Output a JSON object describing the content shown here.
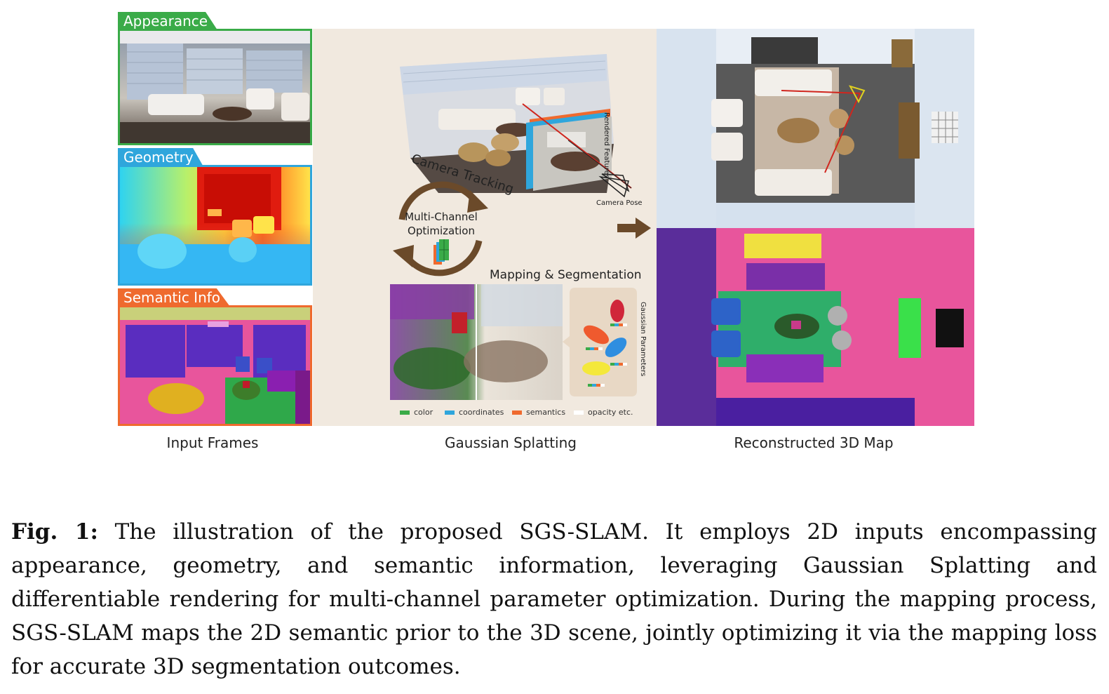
{
  "inputs": {
    "appearance_label": "Appearance",
    "geometry_label": "Geometry",
    "semantic_label": "Semantic Info",
    "column_label": "Input Frames"
  },
  "splatting": {
    "camera_tracking": "Camera Tracking",
    "rendered_features": "Rendered Features",
    "camera_pose": "Camera Pose",
    "optimization_line1": "Multi-Channel",
    "optimization_line2": "Optimization",
    "mapping_segmentation": "Mapping & Segmentation",
    "gaussian_parameters": "Gaussian Parameters",
    "legend": [
      {
        "label": "color",
        "color": "#3aab48"
      },
      {
        "label": "coordinates",
        "color": "#2fa6dc"
      },
      {
        "label": "semantics",
        "color": "#ef6a2e"
      },
      {
        "label": "opacity etc.",
        "color": "#ffffff"
      }
    ],
    "column_label": "Gaussian Splatting"
  },
  "reconstruction": {
    "column_label": "Reconstructed 3D Map"
  },
  "caption": {
    "figure_label": "Fig. 1:",
    "text": "The illustration of the proposed SGS-SLAM. It employs 2D inputs encompassing appearance, geometry, and semantic information, leveraging Gaussian Splatting and differentiable rendering for multi-channel parameter optimization. During the mapping process, SGS-SLAM maps the 2D semantic prior to the 3D scene, jointly optimizing it via the mapping loss for accurate 3D segmentation outcomes."
  },
  "colors": {
    "appearance": "#3aab48",
    "geometry": "#2fa6dc",
    "semantic": "#ef6a2e",
    "arrow_brown": "#6b4a2a",
    "mid_bg": "#f1e9df"
  }
}
